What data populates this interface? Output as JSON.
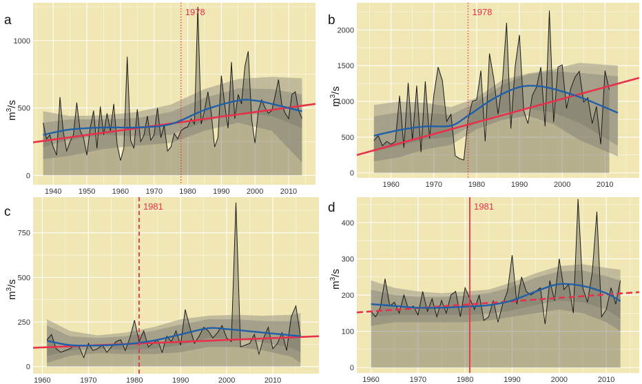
{
  "chart_data": [
    {
      "panel": "a",
      "type": "line",
      "ylabel_base": "m",
      "ylabel_sup": "3",
      "ylabel_tail": "/s",
      "xlim": [
        1934,
        2018
      ],
      "ylim": [
        -70,
        1280
      ],
      "xticks": [
        1940,
        1950,
        1960,
        1970,
        1980,
        1990,
        2000,
        2010
      ],
      "yticks": [
        0,
        500,
        1000
      ],
      "vline": {
        "x": 1978,
        "label": "1978",
        "style": "dotted",
        "color": "#e8304b"
      },
      "x": [
        1937,
        1938,
        1939,
        1940,
        1941,
        1942,
        1943,
        1944,
        1945,
        1946,
        1947,
        1948,
        1949,
        1950,
        1951,
        1952,
        1953,
        1954,
        1955,
        1956,
        1957,
        1958,
        1959,
        1960,
        1961,
        1962,
        1963,
        1964,
        1965,
        1966,
        1967,
        1968,
        1969,
        1970,
        1971,
        1972,
        1973,
        1974,
        1975,
        1976,
        1977,
        1978,
        1979,
        1980,
        1981,
        1982,
        1983,
        1984,
        1985,
        1986,
        1987,
        1988,
        1989,
        1990,
        1991,
        1992,
        1993,
        1994,
        1995,
        1996,
        1997,
        1998,
        1999,
        2000,
        2001,
        2002,
        2003,
        2004,
        2005,
        2006,
        2007,
        2008,
        2009,
        2010,
        2011,
        2012,
        2013,
        2014
      ],
      "values": [
        390,
        270,
        300,
        210,
        150,
        580,
        320,
        180,
        250,
        300,
        540,
        330,
        280,
        150,
        350,
        480,
        200,
        510,
        300,
        460,
        330,
        530,
        230,
        110,
        200,
        880,
        260,
        200,
        490,
        250,
        300,
        440,
        260,
        300,
        500,
        280,
        370,
        180,
        210,
        310,
        270,
        330,
        350,
        360,
        420,
        380,
        1250,
        380,
        480,
        620,
        460,
        210,
        280,
        740,
        520,
        350,
        840,
        420,
        600,
        530,
        810,
        920,
        420,
        240,
        480,
        560,
        500,
        460,
        480,
        590,
        710,
        520,
        460,
        420,
        600,
        620,
        480,
        420
      ],
      "trend": {
        "x": [
          1934,
          2018
        ],
        "values": [
          245,
          530
        ]
      },
      "smooth": {
        "x": [
          1937,
          1945,
          1955,
          1965,
          1975,
          1985,
          1995,
          2000,
          2005,
          2014
        ],
        "values": [
          300,
          340,
          355,
          355,
          380,
          485,
          555,
          555,
          530,
          475
        ]
      },
      "band_outer": {
        "x": [
          1937,
          1945,
          1955,
          1965,
          1975,
          1985,
          1995,
          2005,
          2014
        ],
        "upper": [
          475,
          440,
          445,
          470,
          525,
          640,
          715,
          730,
          720
        ],
        "lower": [
          120,
          145,
          195,
          220,
          240,
          330,
          390,
          330,
          95
        ]
      },
      "band_inner": {
        "x": [
          1937,
          1945,
          1955,
          1965,
          1975,
          1985,
          1995,
          2005,
          2014
        ],
        "upper": [
          390,
          415,
          415,
          425,
          470,
          575,
          645,
          640,
          600
        ],
        "lower": [
          210,
          265,
          300,
          290,
          300,
          400,
          465,
          440,
          350
        ]
      }
    },
    {
      "panel": "b",
      "type": "line",
      "ylabel_base": "m",
      "ylabel_sup": "3",
      "ylabel_tail": "/s",
      "xlim": [
        1952,
        2018
      ],
      "ylim": [
        -70,
        2380
      ],
      "xticks": [
        1960,
        1970,
        1980,
        1990,
        2000,
        2010
      ],
      "yticks": [
        0,
        500,
        1000,
        1500,
        2000
      ],
      "vline": {
        "x": 1978,
        "label": "1978",
        "style": "dotted",
        "color": "#e8304b"
      },
      "x": [
        1956,
        1957,
        1958,
        1959,
        1960,
        1961,
        1962,
        1963,
        1964,
        1965,
        1966,
        1967,
        1968,
        1969,
        1970,
        1971,
        1972,
        1973,
        1974,
        1975,
        1976,
        1977,
        1978,
        1979,
        1980,
        1981,
        1982,
        1983,
        1984,
        1985,
        1986,
        1987,
        1988,
        1989,
        1990,
        1991,
        1992,
        1993,
        1994,
        1995,
        1996,
        1997,
        1998,
        1999,
        2000,
        2001,
        2002,
        2003,
        2004,
        2005,
        2006,
        2007,
        2008,
        2009,
        2010,
        2011
      ],
      "values": [
        450,
        520,
        380,
        440,
        400,
        440,
        1080,
        350,
        1260,
        450,
        1220,
        290,
        1280,
        480,
        1090,
        1480,
        1290,
        720,
        820,
        240,
        200,
        180,
        750,
        1000,
        1020,
        1430,
        440,
        1670,
        1320,
        820,
        1250,
        2100,
        620,
        1490,
        1930,
        870,
        690,
        1080,
        1200,
        1480,
        650,
        2270,
        710,
        1480,
        1510,
        900,
        1180,
        1340,
        1420,
        990,
        1050,
        690,
        930,
        400,
        1430,
        1160
      ],
      "trend": {
        "x": [
          1952,
          2018
        ],
        "values": [
          250,
          1330
        ]
      },
      "smooth": {
        "x": [
          1956,
          1962,
          1968,
          1974,
          1978,
          1984,
          1990,
          1995,
          2000,
          2005,
          2013
        ],
        "values": [
          520,
          600,
          650,
          660,
          800,
          1040,
          1200,
          1210,
          1140,
          1040,
          840
        ]
      },
      "band_outer": {
        "x": [
          1956,
          1962,
          1968,
          1974,
          1980,
          1986,
          1992,
          1998,
          2004,
          2013
        ],
        "upper": [
          950,
          1000,
          980,
          920,
          1050,
          1300,
          1390,
          1450,
          1540,
          1500
        ],
        "lower": [
          160,
          220,
          330,
          390,
          610,
          740,
          800,
          680,
          460,
          230
        ]
      },
      "band_inner": {
        "x": [
          1956,
          1962,
          1968,
          1974,
          1980,
          1986,
          1992,
          1998,
          2004,
          2013
        ],
        "upper": [
          790,
          850,
          840,
          810,
          990,
          1230,
          1380,
          1420,
          1400,
          1350
        ],
        "lower": [
          300,
          380,
          470,
          500,
          700,
          840,
          900,
          840,
          700,
          380
        ]
      }
    },
    {
      "panel": "c",
      "type": "line",
      "ylabel_base": "m",
      "ylabel_sup": "3",
      "ylabel_tail": "/s",
      "xlim": [
        1958,
        2020
      ],
      "ylim": [
        -40,
        950
      ],
      "xticks": [
        1960,
        1970,
        1980,
        1990,
        2000,
        2010
      ],
      "yticks": [
        0,
        250,
        500,
        750
      ],
      "vline": {
        "x": 1981,
        "label": "1981",
        "style": "dashed",
        "color": "#e8304b"
      },
      "x": [
        1961,
        1962,
        1963,
        1964,
        1965,
        1966,
        1967,
        1968,
        1969,
        1970,
        1971,
        1972,
        1973,
        1974,
        1975,
        1976,
        1977,
        1978,
        1979,
        1980,
        1981,
        1982,
        1983,
        1984,
        1985,
        1986,
        1987,
        1988,
        1989,
        1990,
        1991,
        1992,
        1993,
        1994,
        1995,
        1996,
        1997,
        1998,
        1999,
        2000,
        2001,
        2002,
        2003,
        2004,
        2005,
        2006,
        2007,
        2008,
        2009,
        2010,
        2011,
        2012,
        2013,
        2014,
        2015,
        2016
      ],
      "values": [
        150,
        180,
        100,
        80,
        90,
        100,
        120,
        110,
        50,
        130,
        90,
        100,
        120,
        80,
        110,
        140,
        150,
        90,
        160,
        260,
        140,
        200,
        110,
        130,
        150,
        80,
        170,
        140,
        200,
        120,
        320,
        220,
        130,
        170,
        220,
        200,
        160,
        190,
        230,
        160,
        140,
        920,
        110,
        120,
        130,
        180,
        70,
        160,
        220,
        100,
        130,
        190,
        90,
        280,
        340,
        170
      ],
      "trend": {
        "x": [
          1958,
          2020
        ],
        "values": [
          105,
          170
        ]
      },
      "smooth": {
        "x": [
          1961,
          1966,
          1972,
          1978,
          1984,
          1990,
          1996,
          2000,
          2006,
          2012,
          2016
        ],
        "values": [
          145,
          120,
          118,
          125,
          145,
          180,
          215,
          210,
          195,
          180,
          170
        ]
      },
      "band_outer": {
        "x": [
          1961,
          1966,
          1972,
          1978,
          1984,
          1990,
          1996,
          2002,
          2008,
          2014,
          2016
        ],
        "upper": [
          265,
          200,
          175,
          190,
          220,
          265,
          285,
          290,
          285,
          290,
          300
        ],
        "lower": [
          20,
          60,
          75,
          70,
          70,
          80,
          110,
          110,
          90,
          55,
          20
        ]
      },
      "band_inner": {
        "x": [
          1961,
          1966,
          1972,
          1978,
          1984,
          1990,
          1996,
          2002,
          2008,
          2014,
          2016
        ],
        "upper": [
          230,
          170,
          160,
          170,
          200,
          235,
          265,
          265,
          255,
          255,
          255
        ],
        "lower": [
          60,
          90,
          100,
          95,
          100,
          120,
          160,
          155,
          135,
          105,
          80
        ]
      }
    },
    {
      "panel": "d",
      "type": "line",
      "ylabel_base": "m",
      "ylabel_sup": "3",
      "ylabel_tail": "/s",
      "xlim": [
        1957,
        2017
      ],
      "ylim": [
        -15,
        470
      ],
      "xticks": [
        1960,
        1970,
        1980,
        1990,
        2000,
        2010
      ],
      "yticks": [
        0,
        100,
        200,
        300,
        400
      ],
      "vline": {
        "x": 1981,
        "label": "1981",
        "style": "solid",
        "color": "#e8304b"
      },
      "x": [
        1960,
        1961,
        1962,
        1963,
        1964,
        1965,
        1966,
        1967,
        1968,
        1969,
        1970,
        1971,
        1972,
        1973,
        1974,
        1975,
        1976,
        1977,
        1978,
        1979,
        1980,
        1981,
        1982,
        1983,
        1984,
        1985,
        1986,
        1987,
        1988,
        1989,
        1990,
        1991,
        1992,
        1993,
        1994,
        1995,
        1996,
        1997,
        1998,
        1999,
        2000,
        2001,
        2002,
        2003,
        2004,
        2005,
        2006,
        2007,
        2008,
        2009,
        2010,
        2011,
        2012,
        2013
      ],
      "values": [
        155,
        140,
        165,
        245,
        170,
        180,
        150,
        200,
        160,
        170,
        145,
        210,
        155,
        190,
        140,
        185,
        150,
        200,
        210,
        140,
        220,
        190,
        160,
        200,
        130,
        140,
        185,
        125,
        175,
        210,
        310,
        175,
        250,
        210,
        200,
        210,
        220,
        120,
        240,
        185,
        300,
        215,
        230,
        150,
        465,
        220,
        180,
        260,
        430,
        140,
        160,
        220,
        175,
        240
      ],
      "trend": {
        "x": [
          1957,
          2017
        ],
        "values": [
          152,
          208
        ]
      },
      "trend_style": "dashed",
      "smooth": {
        "x": [
          1960,
          1965,
          1970,
          1975,
          1980,
          1985,
          1990,
          1995,
          2000,
          2005,
          2010,
          2013
        ],
        "values": [
          175,
          170,
          165,
          165,
          168,
          172,
          185,
          210,
          230,
          225,
          205,
          183
        ]
      },
      "band_outer": {
        "x": [
          1960,
          1965,
          1970,
          1975,
          1980,
          1985,
          1990,
          1995,
          2000,
          2005,
          2010,
          2013
        ],
        "upper": [
          240,
          220,
          210,
          205,
          210,
          215,
          235,
          260,
          280,
          285,
          275,
          270
        ],
        "lower": [
          115,
          125,
          125,
          125,
          125,
          130,
          140,
          150,
          160,
          150,
          125,
          100
        ]
      },
      "band_inner": {
        "x": [
          1960,
          1965,
          1970,
          1975,
          1980,
          1985,
          1990,
          1995,
          2000,
          2005,
          2010,
          2013
        ],
        "upper": [
          215,
          200,
          195,
          195,
          198,
          205,
          222,
          248,
          265,
          268,
          252,
          240
        ],
        "lower": [
          140,
          145,
          145,
          145,
          145,
          148,
          158,
          172,
          185,
          180,
          160,
          135
        ]
      }
    }
  ]
}
